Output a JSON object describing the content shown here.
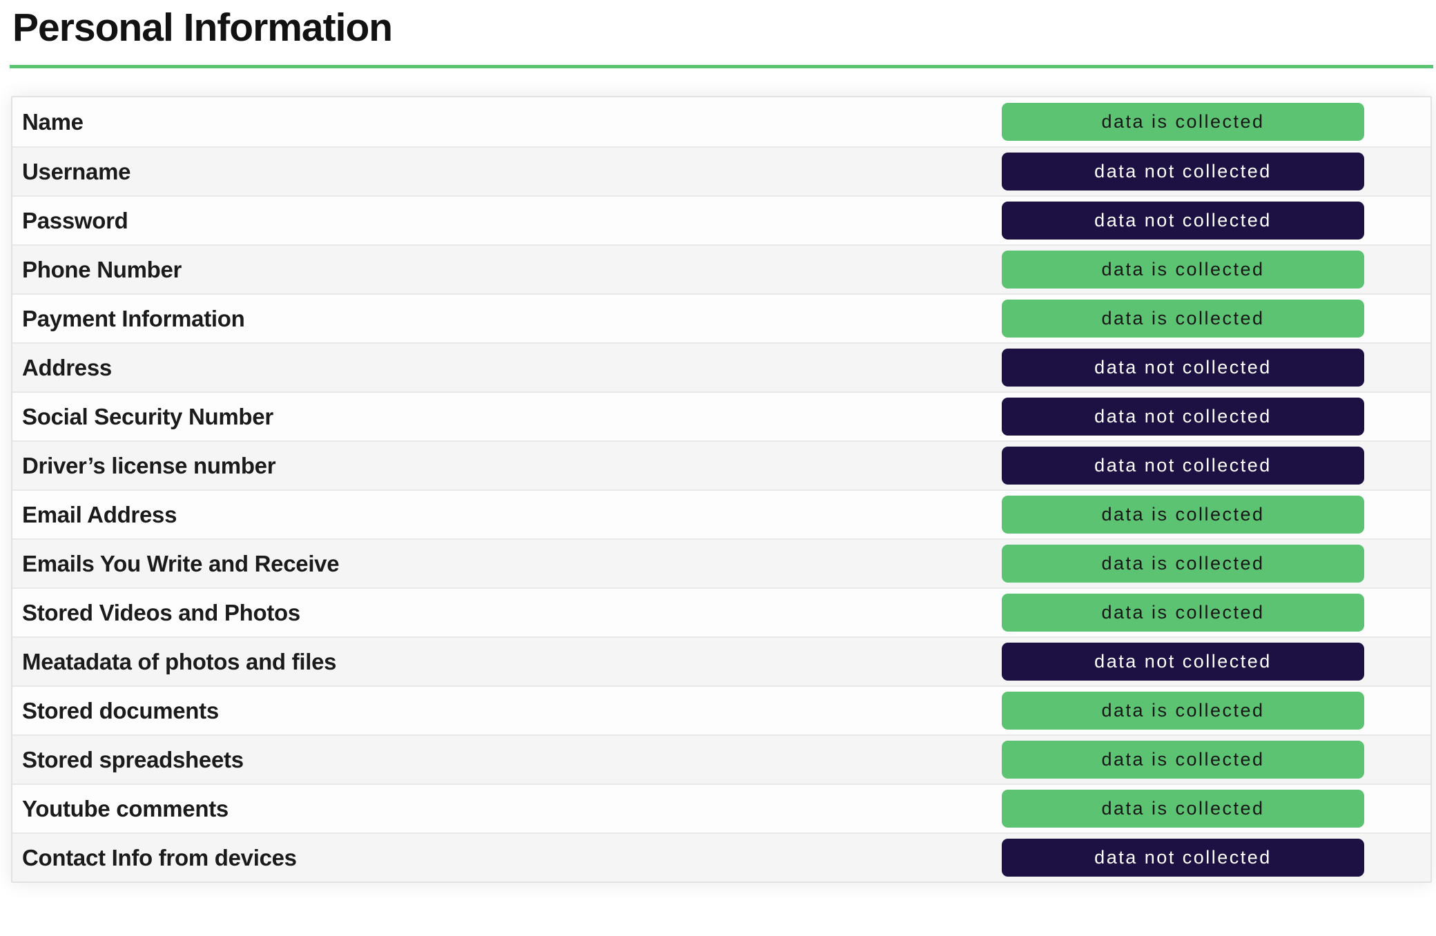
{
  "header": {
    "title": "Personal Information"
  },
  "colors": {
    "accent_green": "#5cc372",
    "badge_collected_bg": "#5cc372",
    "badge_collected_text": "#161616",
    "badge_not_collected_bg": "#1c1142",
    "badge_not_collected_text": "#ffffff",
    "row_alt_bg": "#f5f5f6",
    "row_border": "#e8e8e8"
  },
  "statuses": {
    "collected": "data is collected",
    "not_collected": "data not collected"
  },
  "table": {
    "rows": [
      {
        "label": "Name",
        "status": "collected",
        "status_label": "data is collected"
      },
      {
        "label": "Username",
        "status": "not_collected",
        "status_label": "data not collected"
      },
      {
        "label": "Password",
        "status": "not_collected",
        "status_label": "data not collected"
      },
      {
        "label": "Phone Number",
        "status": "collected",
        "status_label": "data is collected"
      },
      {
        "label": "Payment Information",
        "status": "collected",
        "status_label": "data is collected"
      },
      {
        "label": "Address",
        "status": "not_collected",
        "status_label": "data not collected"
      },
      {
        "label": "Social Security Number",
        "status": "not_collected",
        "status_label": "data not collected"
      },
      {
        "label": "Driver’s license number",
        "status": "not_collected",
        "status_label": "data not collected"
      },
      {
        "label": "Email Address",
        "status": "collected",
        "status_label": "data is collected"
      },
      {
        "label": "Emails You Write and Receive",
        "status": "collected",
        "status_label": "data is collected"
      },
      {
        "label": "Stored Videos and Photos",
        "status": "collected",
        "status_label": "data is collected"
      },
      {
        "label": "Meatadata of photos and files",
        "status": "not_collected",
        "status_label": "data not collected"
      },
      {
        "label": "Stored documents",
        "status": "collected",
        "status_label": "data is collected"
      },
      {
        "label": "Stored spreadsheets",
        "status": "collected",
        "status_label": "data is collected"
      },
      {
        "label": "Youtube comments",
        "status": "collected",
        "status_label": "data is collected"
      },
      {
        "label": "Contact Info from devices",
        "status": "not_collected",
        "status_label": "data not collected"
      }
    ]
  }
}
